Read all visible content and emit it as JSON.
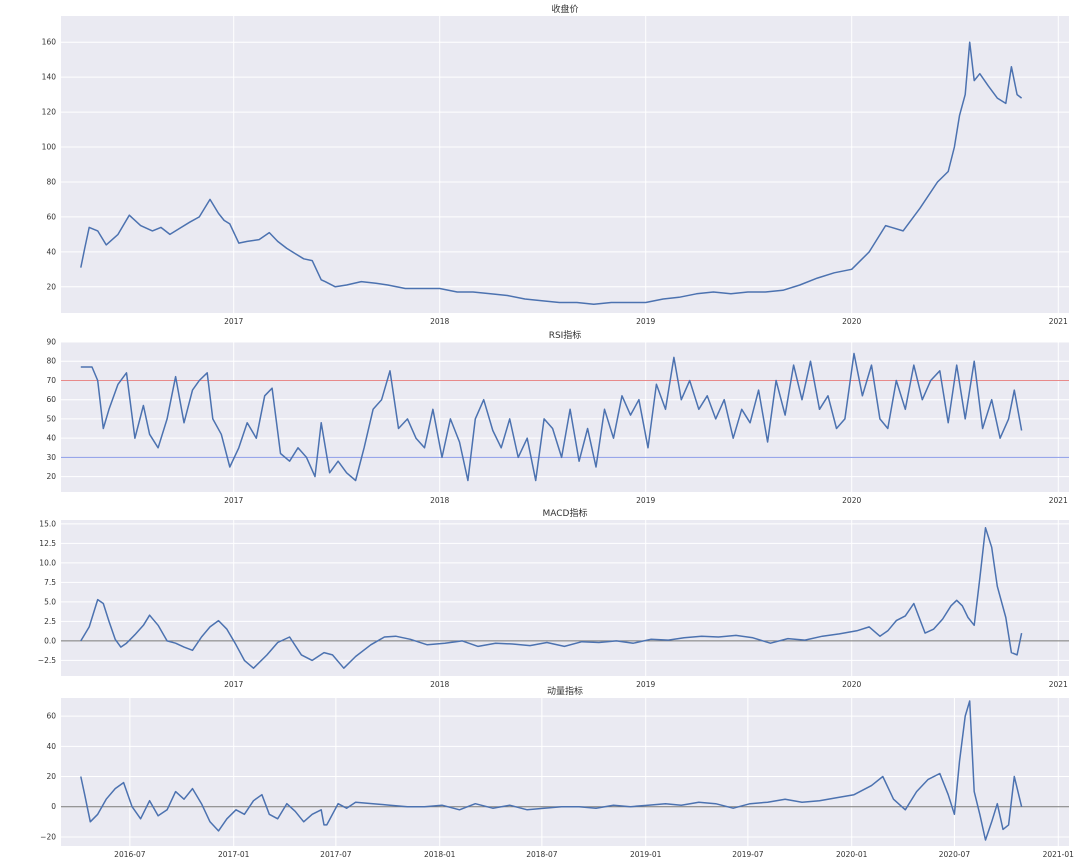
{
  "chart_data": [
    {
      "type": "line",
      "title": "收盘价",
      "xlabel": "",
      "ylabel": "",
      "grid": true,
      "xlim": [
        "2016-03-01",
        "2021-01-20"
      ],
      "ylim": [
        5,
        175
      ],
      "x_ticks": [
        "2017",
        "2018",
        "2019",
        "2020",
        "2021"
      ],
      "y_ticks": [
        "20",
        "40",
        "60",
        "80",
        "100",
        "120",
        "140",
        "160"
      ],
      "line_color": "#4c72b0",
      "series": [
        {
          "x": [
            "2016-04-05",
            "2016-04-12",
            "2016-04-20",
            "2016-05-05",
            "2016-05-20",
            "2016-06-10",
            "2016-06-30",
            "2016-07-20",
            "2016-08-10",
            "2016-08-25",
            "2016-09-10",
            "2016-09-25",
            "2016-10-15",
            "2016-11-01",
            "2016-11-20",
            "2016-12-05",
            "2016-12-15",
            "2016-12-25",
            "2017-01-10",
            "2017-01-25",
            "2017-02-15",
            "2017-03-05",
            "2017-03-20",
            "2017-04-05",
            "2017-04-20",
            "2017-05-05",
            "2017-05-20",
            "2017-06-05",
            "2017-06-12",
            "2017-06-30",
            "2017-07-20",
            "2017-08-15",
            "2017-09-10",
            "2017-10-01",
            "2017-11-01",
            "2017-12-01",
            "2018-01-01",
            "2018-02-01",
            "2018-03-01",
            "2018-04-01",
            "2018-05-01",
            "2018-06-01",
            "2018-07-01",
            "2018-08-01",
            "2018-09-01",
            "2018-10-01",
            "2018-11-01",
            "2018-12-01",
            "2019-01-01",
            "2019-02-01",
            "2019-03-01",
            "2019-04-01",
            "2019-05-01",
            "2019-06-01",
            "2019-07-01",
            "2019-08-01",
            "2019-09-01",
            "2019-10-01",
            "2019-11-01",
            "2019-12-01",
            "2020-01-01",
            "2020-02-01",
            "2020-03-01",
            "2020-04-01",
            "2020-05-01",
            "2020-06-01",
            "2020-06-20",
            "2020-07-01",
            "2020-07-10",
            "2020-07-20",
            "2020-07-28",
            "2020-08-05",
            "2020-08-15",
            "2020-08-30",
            "2020-09-15",
            "2020-09-30",
            "2020-10-10",
            "2020-10-20",
            "2020-10-28"
          ],
          "values": [
            31,
            42,
            54,
            52,
            44,
            50,
            61,
            55,
            52,
            54,
            50,
            53,
            57,
            60,
            70,
            62,
            58,
            56,
            45,
            46,
            47,
            51,
            46,
            42,
            39,
            36,
            35,
            24,
            23,
            20,
            21,
            23,
            22,
            21,
            19,
            19,
            19,
            17,
            17,
            16,
            15,
            13,
            12,
            11,
            11,
            10,
            11,
            11,
            11,
            13,
            14,
            16,
            17,
            16,
            17,
            17,
            18,
            21,
            25,
            28,
            30,
            40,
            55,
            52,
            65,
            80,
            86,
            100,
            118,
            130,
            160,
            138,
            142,
            135,
            128,
            125,
            146,
            130,
            128
          ]
        }
      ]
    },
    {
      "type": "line",
      "title": "RSI指标",
      "xlabel": "",
      "ylabel": "",
      "grid": true,
      "xlim": [
        "2016-03-01",
        "2021-01-20"
      ],
      "ylim": [
        12,
        90
      ],
      "x_ticks": [
        "2017",
        "2018",
        "2019",
        "2020",
        "2021"
      ],
      "y_ticks": [
        "20",
        "30",
        "40",
        "50",
        "60",
        "70",
        "80",
        "90"
      ],
      "reference_lines": [
        {
          "y": 70,
          "color": "#e88a8a"
        },
        {
          "y": 30,
          "color": "#8a9ae8"
        }
      ],
      "line_color": "#4c72b0",
      "series": [
        {
          "x": [
            "2016-04-05",
            "2016-04-25",
            "2016-05-05",
            "2016-05-15",
            "2016-05-25",
            "2016-06-10",
            "2016-06-25",
            "2016-07-10",
            "2016-07-25",
            "2016-08-05",
            "2016-08-20",
            "2016-09-05",
            "2016-09-20",
            "2016-10-05",
            "2016-10-20",
            "2016-11-01",
            "2016-11-15",
            "2016-11-25",
            "2016-12-10",
            "2016-12-25",
            "2017-01-10",
            "2017-01-25",
            "2017-02-10",
            "2017-02-25",
            "2017-03-10",
            "2017-03-25",
            "2017-04-10",
            "2017-04-25",
            "2017-05-10",
            "2017-05-25",
            "2017-06-05",
            "2017-06-20",
            "2017-07-05",
            "2017-07-20",
            "2017-08-05",
            "2017-08-20",
            "2017-09-05",
            "2017-09-20",
            "2017-10-05",
            "2017-10-20",
            "2017-11-05",
            "2017-11-20",
            "2017-12-05",
            "2017-12-20",
            "2018-01-05",
            "2018-01-20",
            "2018-02-05",
            "2018-02-20",
            "2018-03-05",
            "2018-03-20",
            "2018-04-05",
            "2018-04-20",
            "2018-05-05",
            "2018-05-20",
            "2018-06-05",
            "2018-06-20",
            "2018-07-05",
            "2018-07-20",
            "2018-08-05",
            "2018-08-20",
            "2018-09-05",
            "2018-09-20",
            "2018-10-05",
            "2018-10-20",
            "2018-11-05",
            "2018-11-20",
            "2018-12-05",
            "2018-12-20",
            "2019-01-05",
            "2019-01-20",
            "2019-02-05",
            "2019-02-20",
            "2019-03-05",
            "2019-03-20",
            "2019-04-05",
            "2019-04-20",
            "2019-05-05",
            "2019-05-20",
            "2019-06-05",
            "2019-06-20",
            "2019-07-05",
            "2019-07-20",
            "2019-08-05",
            "2019-08-20",
            "2019-09-05",
            "2019-09-20",
            "2019-10-05",
            "2019-10-20",
            "2019-11-05",
            "2019-11-20",
            "2019-12-05",
            "2019-12-20",
            "2020-01-05",
            "2020-01-20",
            "2020-02-05",
            "2020-02-20",
            "2020-03-05",
            "2020-03-20",
            "2020-04-05",
            "2020-04-20",
            "2020-05-05",
            "2020-05-20",
            "2020-06-05",
            "2020-06-20",
            "2020-07-05",
            "2020-07-20",
            "2020-08-05",
            "2020-08-20",
            "2020-09-05",
            "2020-09-20",
            "2020-10-05",
            "2020-10-15",
            "2020-10-28"
          ],
          "values": [
            77,
            77,
            70,
            45,
            55,
            68,
            74,
            40,
            57,
            42,
            35,
            50,
            72,
            48,
            65,
            70,
            74,
            50,
            42,
            25,
            35,
            48,
            40,
            62,
            66,
            32,
            28,
            35,
            30,
            20,
            48,
            22,
            28,
            22,
            18,
            35,
            55,
            60,
            75,
            45,
            50,
            40,
            35,
            55,
            30,
            50,
            38,
            18,
            50,
            60,
            44,
            35,
            50,
            30,
            40,
            18,
            50,
            45,
            30,
            55,
            28,
            45,
            25,
            55,
            40,
            62,
            52,
            60,
            35,
            68,
            55,
            82,
            60,
            70,
            55,
            62,
            50,
            60,
            40,
            55,
            48,
            65,
            38,
            70,
            52,
            78,
            60,
            80,
            55,
            62,
            45,
            50,
            84,
            62,
            78,
            50,
            45,
            70,
            55,
            78,
            60,
            70,
            75,
            48,
            78,
            50,
            80,
            45,
            60,
            40,
            50,
            65,
            44
          ]
        }
      ]
    },
    {
      "type": "line",
      "title": "MACD指标",
      "xlabel": "",
      "ylabel": "",
      "grid": true,
      "xlim": [
        "2016-03-01",
        "2021-01-20"
      ],
      "ylim": [
        -4.5,
        15.5
      ],
      "x_ticks": [
        "2017",
        "2018",
        "2019",
        "2020",
        "2021"
      ],
      "y_ticks": [
        "−2.5",
        "0.0",
        "2.5",
        "5.0",
        "7.5",
        "10.0",
        "12.5",
        "15.0"
      ],
      "reference_lines": [
        {
          "y": 0,
          "color": "#777777"
        }
      ],
      "line_color": "#4c72b0",
      "series": [
        {
          "x": [
            "2016-04-05",
            "2016-04-20",
            "2016-05-05",
            "2016-05-15",
            "2016-05-25",
            "2016-06-05",
            "2016-06-15",
            "2016-06-25",
            "2016-07-10",
            "2016-07-25",
            "2016-08-05",
            "2016-08-20",
            "2016-09-05",
            "2016-09-20",
            "2016-10-05",
            "2016-10-20",
            "2016-11-05",
            "2016-11-20",
            "2016-12-05",
            "2016-12-20",
            "2017-01-05",
            "2017-01-20",
            "2017-02-05",
            "2017-03-01",
            "2017-03-20",
            "2017-04-10",
            "2017-05-01",
            "2017-05-20",
            "2017-06-10",
            "2017-06-25",
            "2017-07-15",
            "2017-08-05",
            "2017-09-01",
            "2017-09-25",
            "2017-10-15",
            "2017-11-10",
            "2017-12-10",
            "2018-01-10",
            "2018-02-10",
            "2018-03-10",
            "2018-04-10",
            "2018-05-10",
            "2018-06-10",
            "2018-07-10",
            "2018-08-10",
            "2018-09-10",
            "2018-10-10",
            "2018-11-10",
            "2018-12-10",
            "2019-01-10",
            "2019-02-10",
            "2019-03-10",
            "2019-04-10",
            "2019-05-10",
            "2019-06-10",
            "2019-07-10",
            "2019-08-10",
            "2019-09-10",
            "2019-10-10",
            "2019-11-10",
            "2019-12-10",
            "2020-01-10",
            "2020-02-01",
            "2020-02-20",
            "2020-03-05",
            "2020-03-20",
            "2020-04-05",
            "2020-04-20",
            "2020-05-10",
            "2020-05-25",
            "2020-06-10",
            "2020-06-25",
            "2020-07-05",
            "2020-07-15",
            "2020-07-25",
            "2020-08-05",
            "2020-08-15",
            "2020-08-25",
            "2020-09-05",
            "2020-09-15",
            "2020-09-30",
            "2020-10-10",
            "2020-10-20",
            "2020-10-28"
          ],
          "values": [
            0,
            1.8,
            5.3,
            4.8,
            2.5,
            0.2,
            -0.8,
            -0.3,
            0.8,
            2.0,
            3.3,
            2.0,
            0.0,
            -0.3,
            -0.8,
            -1.2,
            0.5,
            1.8,
            2.6,
            1.5,
            -0.5,
            -2.5,
            -3.5,
            -1.8,
            -0.2,
            0.5,
            -1.8,
            -2.5,
            -1.5,
            -1.8,
            -3.5,
            -2.0,
            -0.5,
            0.5,
            0.6,
            0.2,
            -0.5,
            -0.3,
            0.0,
            -0.7,
            -0.3,
            -0.4,
            -0.6,
            -0.2,
            -0.7,
            -0.1,
            -0.2,
            0.0,
            -0.3,
            0.2,
            0.1,
            0.4,
            0.6,
            0.5,
            0.7,
            0.4,
            -0.3,
            0.3,
            0.1,
            0.6,
            0.9,
            1.3,
            1.8,
            0.6,
            1.3,
            2.6,
            3.2,
            4.8,
            1.0,
            1.5,
            2.8,
            4.5,
            5.2,
            4.5,
            3.0,
            2.0,
            8.0,
            14.5,
            12.0,
            7.0,
            3.0,
            -1.5,
            -1.8,
            1.0
          ]
        }
      ]
    },
    {
      "type": "line",
      "title": "动量指标",
      "xlabel": "",
      "ylabel": "",
      "grid": true,
      "xlim": [
        "2016-03-01",
        "2021-01-20"
      ],
      "ylim": [
        -26,
        72
      ],
      "x_ticks": [
        "2016-07",
        "2017-01",
        "2017-07",
        "2018-01",
        "2018-07",
        "2019-01",
        "2019-07",
        "2020-01",
        "2020-07",
        "2021-01"
      ],
      "y_ticks": [
        "−20",
        "0",
        "20",
        "40",
        "60"
      ],
      "reference_lines": [
        {
          "y": 0,
          "color": "#777777"
        }
      ],
      "line_color": "#4c72b0",
      "series": [
        {
          "x": [
            "2016-04-05",
            "2016-04-12",
            "2016-04-22",
            "2016-05-05",
            "2016-05-20",
            "2016-06-05",
            "2016-06-20",
            "2016-07-05",
            "2016-07-20",
            "2016-08-05",
            "2016-08-20",
            "2016-09-05",
            "2016-09-20",
            "2016-10-05",
            "2016-10-20",
            "2016-11-05",
            "2016-11-20",
            "2016-12-05",
            "2016-12-20",
            "2017-01-05",
            "2017-01-20",
            "2017-02-05",
            "2017-02-20",
            "2017-03-05",
            "2017-03-20",
            "2017-04-05",
            "2017-04-20",
            "2017-05-05",
            "2017-05-20",
            "2017-06-05",
            "2017-06-10",
            "2017-06-15",
            "2017-07-05",
            "2017-07-20",
            "2017-08-05",
            "2017-09-05",
            "2017-10-05",
            "2017-11-05",
            "2017-12-05",
            "2018-01-05",
            "2018-02-05",
            "2018-03-05",
            "2018-04-05",
            "2018-05-05",
            "2018-06-05",
            "2018-07-05",
            "2018-08-05",
            "2018-09-05",
            "2018-10-05",
            "2018-11-05",
            "2018-12-05",
            "2019-01-05",
            "2019-02-05",
            "2019-03-05",
            "2019-04-05",
            "2019-05-05",
            "2019-06-05",
            "2019-07-05",
            "2019-08-05",
            "2019-09-05",
            "2019-10-05",
            "2019-11-05",
            "2019-12-05",
            "2020-01-05",
            "2020-02-05",
            "2020-02-25",
            "2020-03-15",
            "2020-04-05",
            "2020-04-25",
            "2020-05-15",
            "2020-06-05",
            "2020-06-20",
            "2020-07-01",
            "2020-07-10",
            "2020-07-20",
            "2020-07-28",
            "2020-08-05",
            "2020-08-15",
            "2020-08-25",
            "2020-09-05",
            "2020-09-15",
            "2020-09-25",
            "2020-10-05",
            "2020-10-15",
            "2020-10-28"
          ],
          "values": [
            20,
            8,
            -10,
            -5,
            5,
            12,
            16,
            0,
            -8,
            4,
            -6,
            -2,
            10,
            5,
            12,
            2,
            -10,
            -16,
            -8,
            -2,
            -5,
            4,
            8,
            -5,
            -8,
            2,
            -3,
            -10,
            -5,
            -2,
            -12,
            -12,
            2,
            -1,
            3,
            2,
            1,
            0,
            0,
            1,
            -2,
            2,
            -1,
            1,
            -2,
            -1,
            0,
            0,
            -1,
            1,
            0,
            1,
            2,
            1,
            3,
            2,
            -1,
            2,
            3,
            5,
            3,
            4,
            6,
            8,
            14,
            20,
            5,
            -2,
            10,
            18,
            22,
            8,
            -5,
            30,
            60,
            70,
            10,
            -5,
            -22,
            -10,
            2,
            -15,
            -12,
            20,
            0
          ]
        }
      ]
    }
  ]
}
